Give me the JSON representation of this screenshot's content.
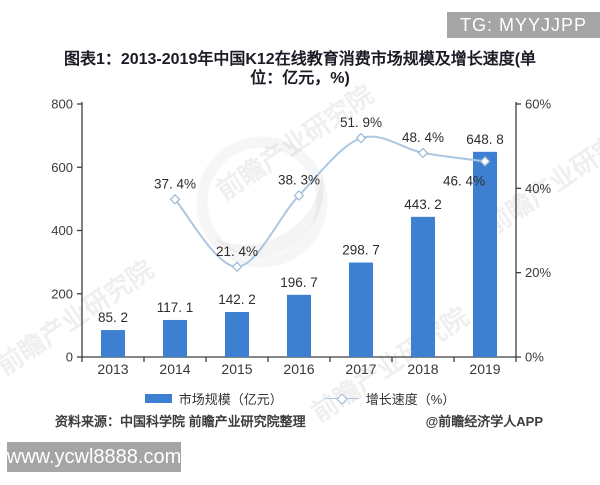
{
  "badges": {
    "top_right": "TG: MYYJJPP",
    "bottom_left": "www.ycwl8888.com"
  },
  "title": {
    "full": "图表1：2013-2019年中国K12在线教育消费市场规模及增长速度(单位：亿元，%)",
    "line1": "图表1：2013-2019年中国K12在线教育消费市场规模及增长速度(单",
    "line2": "位：亿元，%)"
  },
  "chart_data": {
    "type": "bar+line combo",
    "categories": [
      "2013",
      "2014",
      "2015",
      "2016",
      "2017",
      "2018",
      "2019"
    ],
    "series": [
      {
        "name": "市场规模（亿元）",
        "type": "bar",
        "axis": "left",
        "values": [
          85.2,
          117.1,
          142.2,
          196.7,
          298.7,
          443.2,
          648.8
        ],
        "labels": [
          "85. 2",
          "117. 1",
          "142. 2",
          "196. 7",
          "298. 7",
          "443. 2",
          "648. 8"
        ]
      },
      {
        "name": "增长速度（%）",
        "type": "line",
        "axis": "right",
        "smooth": true,
        "marker": "diamond",
        "values": [
          null,
          37.4,
          21.4,
          38.3,
          51.9,
          48.4,
          46.4
        ],
        "labels": [
          null,
          "37. 4%",
          "21. 4%",
          "38. 3%",
          "51. 9%",
          "48. 4%",
          "46. 4%"
        ]
      }
    ],
    "left_axis": {
      "min": 0,
      "max": 800,
      "step": 200,
      "tick_labels": [
        "0",
        "200",
        "400",
        "600",
        "800"
      ]
    },
    "right_axis": {
      "min": 0,
      "max": 60,
      "step": 20,
      "tick_labels": [
        "0%",
        "20%",
        "40%",
        "60%"
      ]
    },
    "grid": false,
    "legend_position": "bottom"
  },
  "legend": {
    "items": [
      {
        "label": "市场规模（亿元）",
        "swatch": "bar"
      },
      {
        "label": "增长速度（%）",
        "swatch": "line"
      }
    ]
  },
  "footer": {
    "source": "资料来源：中国科学院 前瞻产业研究院整理",
    "credit": "@前瞻经济学人APP"
  },
  "watermark": {
    "text": "前瞻产业研究院",
    "logo": "qianzhan-globe-logo"
  },
  "colors": {
    "bar": "#3d7fd0",
    "line": "#abc7e2",
    "marker_stroke": "#9cb9d6",
    "axis": "#3f3f3f",
    "title": "#1b1b25",
    "badge_bg": "#a5a5a5",
    "badge_text": "#ffffff"
  }
}
